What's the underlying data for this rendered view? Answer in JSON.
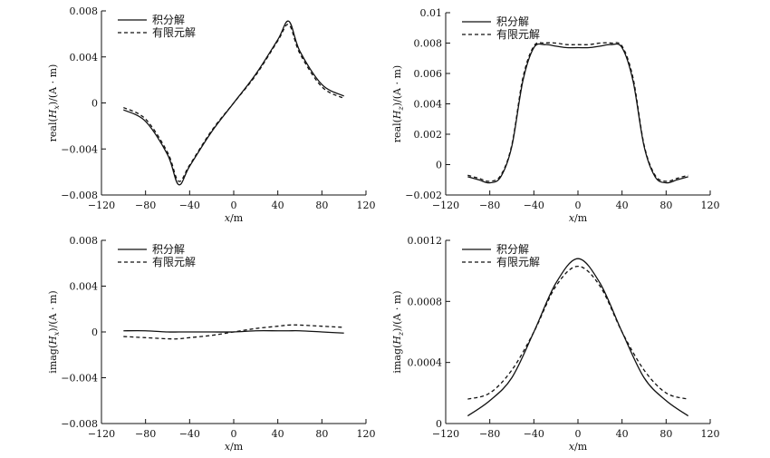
{
  "chart_data": [
    {
      "type": "line",
      "panel": "top-left",
      "xlabel": "x/m",
      "ylabel": "real(Hx)/(A · m)",
      "xlim": [
        -120,
        120
      ],
      "ylim": [
        -0.008,
        0.008
      ],
      "xticks": [
        -120,
        -80,
        -40,
        0,
        40,
        80,
        120
      ],
      "yticks": [
        -0.008,
        -0.004,
        0,
        0.004,
        0.008
      ],
      "ytick_labels": [
        "−0.008",
        "−0.004",
        "0",
        "0.004",
        "0.008"
      ],
      "xtick_labels": [
        "−120",
        "−80",
        "−40",
        "0",
        "40",
        "80",
        "120"
      ],
      "legend": "top-left",
      "x": [
        -100,
        -80,
        -60,
        -50,
        -40,
        -20,
        0,
        20,
        40,
        50,
        60,
        80,
        100
      ],
      "series": [
        {
          "name": "积分解",
          "style": "solid",
          "values": [
            -0.0006,
            -0.0016,
            -0.0045,
            -0.0071,
            -0.0055,
            -0.0025,
            0.0,
            0.0025,
            0.0055,
            0.0071,
            0.0045,
            0.0016,
            0.0006
          ]
        },
        {
          "name": "有限元解",
          "style": "dashed",
          "values": [
            -0.0004,
            -0.0014,
            -0.0043,
            -0.0068,
            -0.0054,
            -0.0024,
            0.0,
            0.0024,
            0.0054,
            0.0068,
            0.0043,
            0.0014,
            0.0004
          ]
        }
      ]
    },
    {
      "type": "line",
      "panel": "top-right",
      "xlabel": "x/m",
      "ylabel": "real(Hz)/(A · m)",
      "xlim": [
        -120,
        120
      ],
      "ylim": [
        -0.002,
        0.01
      ],
      "xticks": [
        -120,
        -80,
        -40,
        0,
        40,
        80,
        120
      ],
      "yticks": [
        -0.002,
        0,
        0.002,
        0.004,
        0.006,
        0.008,
        0.01
      ],
      "ytick_labels": [
        "−0.002",
        "0",
        "0.002",
        "0.004",
        "0.006",
        "0.008",
        "0.01"
      ],
      "xtick_labels": [
        "−120",
        "−80",
        "−40",
        "0",
        "40",
        "80",
        "120"
      ],
      "legend": "top-left",
      "x": [
        -100,
        -90,
        -80,
        -70,
        -60,
        -50,
        -40,
        -30,
        -20,
        -10,
        0,
        10,
        20,
        30,
        40,
        50,
        60,
        70,
        80,
        90,
        100
      ],
      "series": [
        {
          "name": "积分解",
          "style": "solid",
          "values": [
            -0.0008,
            -0.001,
            -0.0012,
            -0.0008,
            0.0012,
            0.0055,
            0.0077,
            0.0079,
            0.0078,
            0.0077,
            0.0077,
            0.0077,
            0.0078,
            0.0079,
            0.0077,
            0.0055,
            0.0012,
            -0.0008,
            -0.0012,
            -0.001,
            -0.0008
          ]
        },
        {
          "name": "有限元解",
          "style": "dashed",
          "values": [
            -0.0007,
            -0.0009,
            -0.0011,
            -0.0007,
            0.0013,
            0.0057,
            0.0078,
            0.008,
            0.008,
            0.0079,
            0.0079,
            0.0079,
            0.008,
            0.008,
            0.0078,
            0.0057,
            0.0013,
            -0.0007,
            -0.0011,
            -0.0009,
            -0.0007
          ]
        }
      ]
    },
    {
      "type": "line",
      "panel": "bottom-left",
      "xlabel": "x/m",
      "ylabel": "imag(Hx)/(A · m)",
      "xlim": [
        -120,
        120
      ],
      "ylim": [
        -0.008,
        0.008
      ],
      "xticks": [
        -120,
        -80,
        -40,
        0,
        40,
        80,
        120
      ],
      "yticks": [
        -0.008,
        -0.004,
        0,
        0.004,
        0.008
      ],
      "ytick_labels": [
        "−0.008",
        "−0.004",
        "0",
        "0.004",
        "0.008"
      ],
      "xtick_labels": [
        "−120",
        "−80",
        "−40",
        "0",
        "40",
        "80",
        "120"
      ],
      "legend": "top-left",
      "x": [
        -100,
        -80,
        -60,
        -50,
        -40,
        -20,
        0,
        20,
        40,
        50,
        60,
        80,
        100
      ],
      "series": [
        {
          "name": "积分解",
          "style": "solid",
          "values": [
            0.0001,
            0.0001,
            0.0,
            0.0,
            0.0,
            0.0,
            0.0,
            0.0001,
            0.0001,
            0.0001,
            0.0001,
            0.0,
            -0.0001
          ]
        },
        {
          "name": "有限元解",
          "style": "dashed",
          "values": [
            -0.0004,
            -0.0005,
            -0.0006,
            -0.0006,
            -0.0005,
            -0.0003,
            0.0,
            0.0003,
            0.0005,
            0.0006,
            0.0006,
            0.0005,
            0.0004
          ]
        }
      ]
    },
    {
      "type": "line",
      "panel": "bottom-right",
      "xlabel": "x/m",
      "ylabel": "imag(Hz)/(A · m)",
      "xlim": [
        -120,
        120
      ],
      "ylim": [
        0,
        0.0012
      ],
      "xticks": [
        -120,
        -80,
        -40,
        0,
        40,
        80,
        120
      ],
      "yticks": [
        0,
        0.0004,
        0.0008,
        0.0012
      ],
      "ytick_labels": [
        "0",
        "0.0004",
        "0.0008",
        "0.0012"
      ],
      "xtick_labels": [
        "−120",
        "−80",
        "−40",
        "0",
        "40",
        "80",
        "120"
      ],
      "legend": "top-left",
      "x": [
        -100,
        -80,
        -60,
        -40,
        -20,
        0,
        20,
        40,
        60,
        80,
        100
      ],
      "series": [
        {
          "name": "积分解",
          "style": "solid",
          "values": [
            5e-05,
            0.00015,
            0.0003,
            0.0006,
            0.00092,
            0.00108,
            0.00092,
            0.0006,
            0.0003,
            0.00015,
            5e-05
          ]
        },
        {
          "name": "有限元解",
          "style": "dashed",
          "values": [
            0.00016,
            0.0002,
            0.00035,
            0.0006,
            0.0009,
            0.00103,
            0.0009,
            0.0006,
            0.00035,
            0.0002,
            0.00016
          ]
        }
      ]
    }
  ]
}
